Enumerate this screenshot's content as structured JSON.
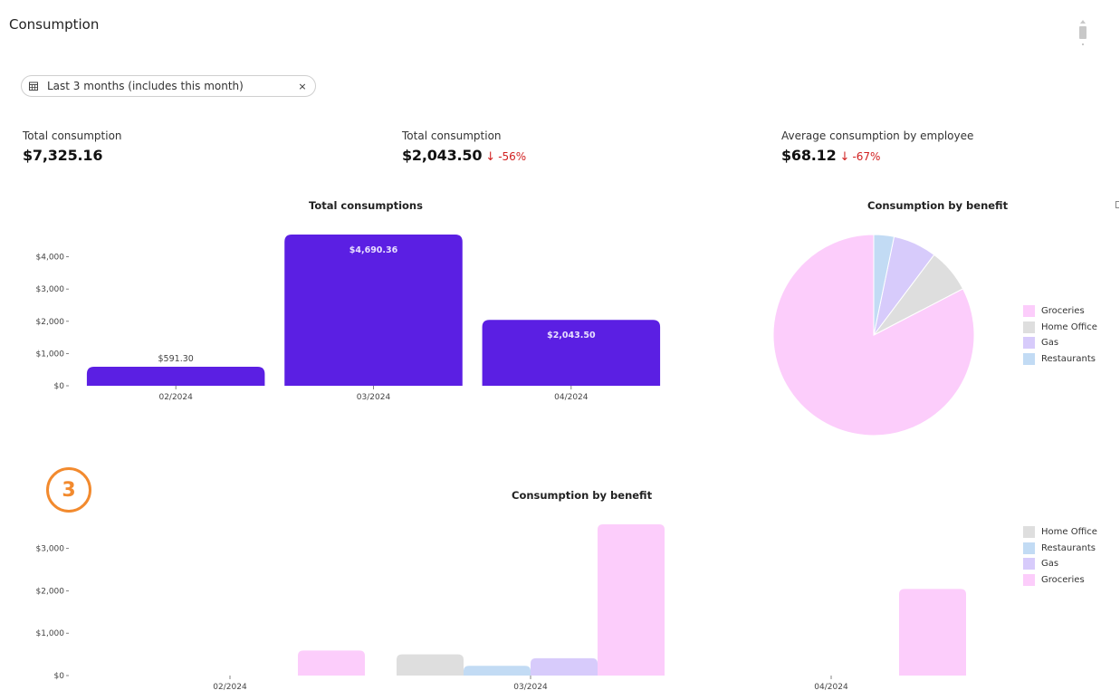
{
  "page": {
    "title": "Consumption"
  },
  "filter": {
    "label": "Last 3 months (includes this month)",
    "icon": "calendar-icon",
    "clear": "×"
  },
  "kpis": [
    {
      "label": "Total consumption",
      "value": "$7,325.16",
      "delta": null
    },
    {
      "label": "Total consumption",
      "value": "$2,043.50",
      "delta": "-56%",
      "delta_icon": "arrow-down-icon"
    },
    {
      "label": "Average consumption by employee",
      "value": "$68.12",
      "delta": "-67%",
      "delta_icon": "arrow-down-icon"
    }
  ],
  "colors": {
    "primary_bar": "#5b1fe3",
    "negative": "#d11f1f",
    "Groceries": "#fccdfb",
    "Home Office": "#dedede",
    "Gas": "#d7cbfb",
    "Restaurants": "#c2dbf4",
    "badge": "#f28a2e"
  },
  "badge": {
    "text": "3"
  },
  "chart_data": [
    {
      "type": "bar",
      "title": "Total consumptions",
      "categories": [
        "02/2024",
        "03/2024",
        "04/2024"
      ],
      "values": [
        591.3,
        4690.36,
        2043.5
      ],
      "data_labels": [
        "$591.30",
        "$4,690.36",
        "$2,043.50"
      ],
      "yticks": [
        0,
        1000,
        2000,
        3000,
        4000
      ],
      "ytick_labels": [
        "$0",
        "$1,000",
        "$2,000",
        "$3,000",
        "$4,000"
      ],
      "ylim": [
        0,
        4690.36
      ],
      "xlabel": "",
      "ylabel": "",
      "grid": false
    },
    {
      "type": "pie",
      "title": "Consumption by benefit",
      "labels": [
        "Groceries",
        "Home Office",
        "Gas",
        "Restaurants"
      ],
      "values": [
        81.3,
        7.0,
        6.9,
        3.2
      ],
      "legend": [
        "Groceries",
        "Home Office",
        "Gas",
        "Restaurants"
      ],
      "legend_position": "right"
    },
    {
      "type": "bar",
      "title": "Consumption by benefit",
      "categories": [
        "02/2024",
        "03/2024",
        "04/2024"
      ],
      "series": [
        {
          "name": "Home Office",
          "values": [
            0,
            500,
            0
          ]
        },
        {
          "name": "Restaurants",
          "values": [
            0,
            230,
            0
          ]
        },
        {
          "name": "Gas",
          "values": [
            0,
            410,
            0
          ]
        },
        {
          "name": "Groceries",
          "values": [
            591.3,
            3570,
            2043.5
          ]
        }
      ],
      "yticks": [
        0,
        1000,
        2000,
        3000
      ],
      "ytick_labels": [
        "$0",
        "$1,000",
        "$2,000",
        "$3,000"
      ],
      "ylim": [
        0,
        3570
      ],
      "legend": [
        "Home Office",
        "Restaurants",
        "Gas",
        "Groceries"
      ],
      "legend_position": "right",
      "grid": false
    }
  ]
}
